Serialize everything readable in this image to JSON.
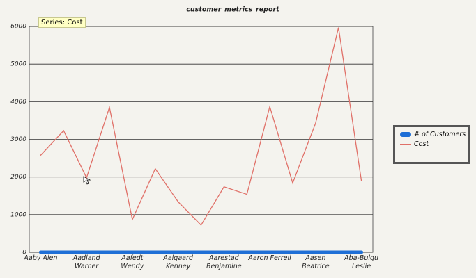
{
  "chart_data": {
    "type": "line",
    "title": "customer_metrics_report",
    "tooltip": "Series: Cost",
    "categories": [
      "Aaby Alen",
      null,
      "Aadland\nWarner",
      null,
      "Aafedt\nWendy",
      null,
      "Aalgaard\nKenney",
      null,
      "Aarestad\nBenjamine",
      null,
      "Aaron Ferrell",
      null,
      "Aasen\nBeatrice",
      null,
      "Aba-Bulgu\nLeslie"
    ],
    "series": [
      {
        "name": "# of Customers",
        "color": "#1f6fd6",
        "values": [
          1,
          1,
          1,
          1,
          1,
          1,
          1,
          1,
          1,
          1,
          1,
          1,
          1,
          1,
          1
        ]
      },
      {
        "name": "Cost",
        "color": "#e07068",
        "values": [
          2580,
          3230,
          1980,
          3850,
          870,
          2220,
          1340,
          720,
          1740,
          1540,
          3870,
          1840,
          3430,
          5970,
          1900
        ]
      }
    ],
    "ylim": [
      0,
      6000
    ],
    "yticks": [
      0,
      1000,
      2000,
      3000,
      4000,
      5000,
      6000
    ],
    "grid": true
  }
}
